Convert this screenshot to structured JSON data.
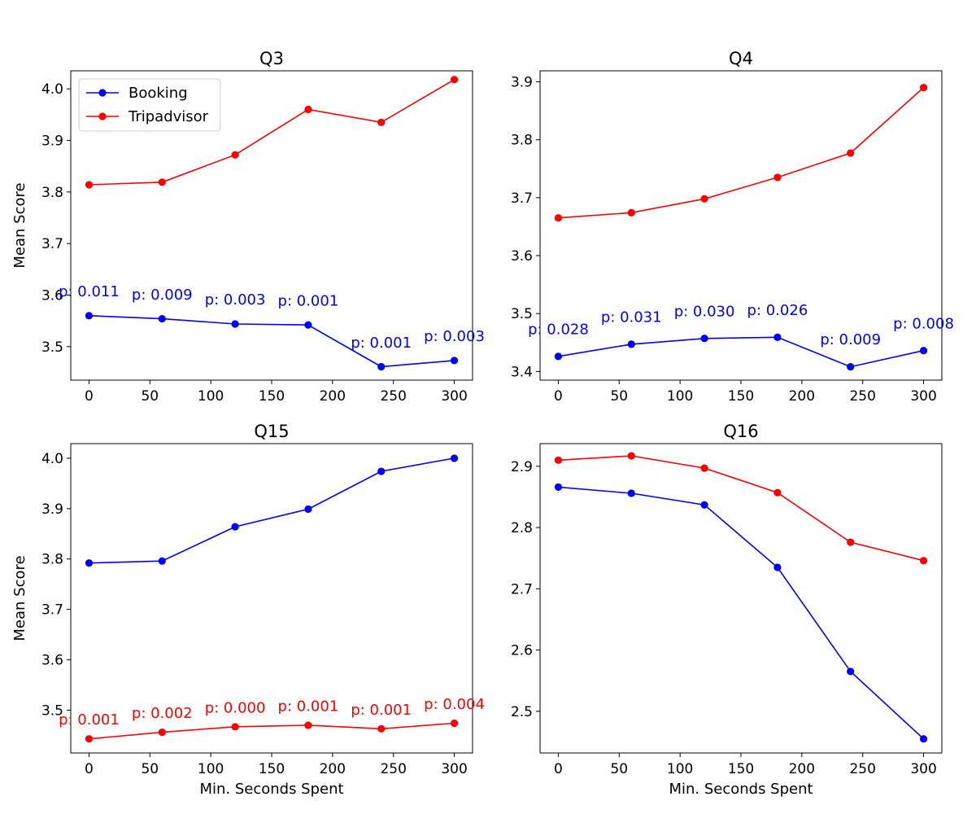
{
  "chart_data": [
    {
      "type": "line",
      "title": "Q3",
      "xlabel": "",
      "ylabel": "Mean Score",
      "x": [
        0,
        60,
        120,
        180,
        240,
        300
      ],
      "xlim": [
        -15,
        315
      ],
      "ylim": [
        3.435,
        4.035
      ],
      "xticks": [
        0,
        50,
        100,
        150,
        200,
        250,
        300
      ],
      "yticks": [
        3.5,
        3.6,
        3.7,
        3.8,
        3.9,
        4.0
      ],
      "ytick_labels": [
        "3.5",
        "3.6",
        "3.7",
        "3.8",
        "3.9",
        "4.0"
      ],
      "legend": {
        "position": "top-left",
        "entries": [
          "Booking",
          "Tripadvisor"
        ]
      },
      "series": [
        {
          "name": "Booking",
          "color": "#0000ff",
          "values": [
            3.56,
            3.554,
            3.544,
            3.542,
            3.461,
            3.473
          ]
        },
        {
          "name": "Tripadvisor",
          "color": "#ff0000",
          "values": [
            3.814,
            3.819,
            3.872,
            3.96,
            3.935,
            4.018
          ]
        }
      ],
      "annotations": {
        "series": "Booking",
        "color": "#0000ff",
        "texts": [
          "p: 0.011",
          "p: 0.009",
          "p: 0.003",
          "p: 0.001",
          "p: 0.001",
          "p: 0.003"
        ],
        "y": [
          3.607,
          3.601,
          3.591,
          3.589,
          3.508,
          3.52
        ]
      }
    },
    {
      "type": "line",
      "title": "Q4",
      "xlabel": "",
      "ylabel": "",
      "x": [
        0,
        60,
        120,
        180,
        240,
        300
      ],
      "xlim": [
        -15,
        315
      ],
      "ylim": [
        3.385,
        3.919
      ],
      "xticks": [
        0,
        50,
        100,
        150,
        200,
        250,
        300
      ],
      "yticks": [
        3.4,
        3.5,
        3.6,
        3.7,
        3.8,
        3.9
      ],
      "ytick_labels": [
        "3.4",
        "3.5",
        "3.6",
        "3.7",
        "3.8",
        "3.9"
      ],
      "series": [
        {
          "name": "Booking",
          "color": "#0000ff",
          "values": [
            3.426,
            3.447,
            3.457,
            3.459,
            3.408,
            3.436
          ]
        },
        {
          "name": "Tripadvisor",
          "color": "#ff0000",
          "values": [
            3.665,
            3.674,
            3.698,
            3.735,
            3.777,
            3.89
          ]
        }
      ],
      "annotations": {
        "series": "Booking",
        "color": "#0000ff",
        "texts": [
          "p: 0.028",
          "p: 0.031",
          "p: 0.030",
          "p: 0.026",
          "p: 0.009",
          "p: 0.008"
        ],
        "y": [
          3.473,
          3.494,
          3.504,
          3.506,
          3.455,
          3.483
        ]
      }
    },
    {
      "type": "line",
      "title": "Q15",
      "xlabel": "Min. Seconds Spent",
      "ylabel": "Mean Score",
      "x": [
        0,
        60,
        120,
        180,
        240,
        300
      ],
      "xlim": [
        -15,
        315
      ],
      "ylim": [
        3.415,
        4.029
      ],
      "xticks": [
        0,
        50,
        100,
        150,
        200,
        250,
        300
      ],
      "yticks": [
        3.5,
        3.6,
        3.7,
        3.8,
        3.9,
        4.0
      ],
      "ytick_labels": [
        "3.5",
        "3.6",
        "3.7",
        "3.8",
        "3.9",
        "4.0"
      ],
      "series": [
        {
          "name": "Booking",
          "color": "#0000ff",
          "values": [
            3.792,
            3.796,
            3.864,
            3.899,
            3.974,
            4.0
          ]
        },
        {
          "name": "Tripadvisor",
          "color": "#ff0000",
          "values": [
            3.443,
            3.456,
            3.467,
            3.47,
            3.463,
            3.474
          ]
        }
      ],
      "annotations": {
        "series": "Tripadvisor",
        "color": "#ff0000",
        "texts": [
          "p: 0.001",
          "p: 0.002",
          "p: 0.000",
          "p: 0.001",
          "p: 0.001",
          "p: 0.004"
        ],
        "y": [
          3.481,
          3.494,
          3.505,
          3.508,
          3.501,
          3.512
        ]
      }
    },
    {
      "type": "line",
      "title": "Q16",
      "xlabel": "Min. Seconds Spent",
      "ylabel": "",
      "x": [
        0,
        60,
        120,
        180,
        240,
        300
      ],
      "xlim": [
        -15,
        315
      ],
      "ylim": [
        2.432,
        2.937
      ],
      "xticks": [
        0,
        50,
        100,
        150,
        200,
        250,
        300
      ],
      "yticks": [
        2.5,
        2.6,
        2.7,
        2.8,
        2.9
      ],
      "ytick_labels": [
        "2.5",
        "2.6",
        "2.7",
        "2.8",
        "2.9"
      ],
      "series": [
        {
          "name": "Booking",
          "color": "#0000ff",
          "values": [
            2.866,
            2.856,
            2.837,
            2.735,
            2.565,
            2.455
          ]
        },
        {
          "name": "Tripadvisor",
          "color": "#ff0000",
          "values": [
            2.91,
            2.917,
            2.897,
            2.857,
            2.776,
            2.746
          ]
        }
      ]
    }
  ]
}
